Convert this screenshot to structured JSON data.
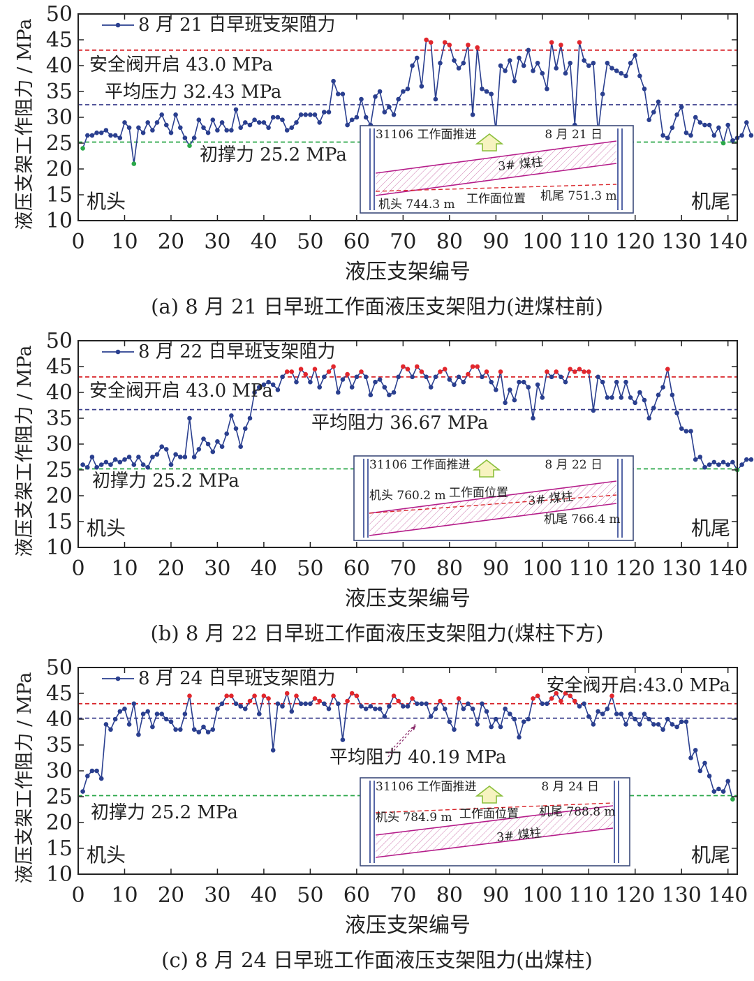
{
  "chart_data": [
    {
      "type": "line",
      "caption": "(a) 8 月 21 日早班工作面液压支架阻力(进煤柱前)",
      "xlabel": "液压支架编号",
      "ylabel": "液压支架工作阻力 / MPa",
      "xlim": [
        0,
        142
      ],
      "ylim": [
        10,
        50
      ],
      "xticks": [
        0,
        10,
        20,
        30,
        40,
        50,
        60,
        70,
        80,
        90,
        100,
        110,
        120,
        130,
        140
      ],
      "yticks": [
        10,
        15,
        20,
        25,
        30,
        35,
        40,
        45,
        50
      ],
      "grid": false,
      "legend_position": "top-left",
      "series": [
        {
          "name": "8 月 21 日早班支架阻力",
          "color": "#2a3f8f",
          "x_start": 1,
          "values": [
            24,
            26.5,
            26.5,
            27,
            27,
            27.5,
            26.5,
            26.5,
            26,
            29,
            28,
            21,
            28,
            27,
            29,
            27.5,
            29,
            30.5,
            28.5,
            27,
            30.5,
            28,
            26,
            24.5,
            26,
            29.5,
            28,
            27,
            29.5,
            27.5,
            29,
            27.5,
            27.5,
            31.5,
            28,
            29,
            28.5,
            29.5,
            29,
            29,
            28,
            30,
            30,
            29.5,
            27.5,
            28,
            29,
            30.5,
            30.5,
            30.5,
            30.5,
            29,
            31,
            31,
            37,
            34.5,
            34.5,
            28.5,
            29.5,
            30,
            33.5,
            30,
            28.5,
            34,
            35,
            31,
            32,
            30.5,
            33.5,
            35,
            35.5,
            40,
            41.5,
            36,
            45,
            44.5,
            33.5,
            40.5,
            44.5,
            44,
            41,
            39.5,
            40.5,
            44,
            30.5,
            43.5,
            35.5,
            35,
            34.5,
            27.5,
            40,
            39,
            41,
            37,
            41.5,
            40,
            43,
            39,
            40.5,
            38.5,
            35.5,
            44.5,
            39.5,
            44,
            38.5,
            40.5,
            28.5,
            44.5,
            41,
            40,
            40.5,
            27,
            34.5,
            40.5,
            39.5,
            39,
            38.5,
            38,
            40.5,
            42,
            38,
            35.5,
            29.5,
            31,
            33,
            26.5,
            26,
            28,
            30.5,
            32,
            27,
            26.5,
            30,
            29,
            28.5,
            28.5,
            26.5,
            28,
            25,
            28.5,
            25.5,
            26,
            26.5,
            29,
            26.5
          ]
        }
      ],
      "reference_lines": [
        {
          "label": "安全阀开启 43.0 MPa",
          "value": 43.0,
          "color": "#d9262c"
        },
        {
          "label": "平均压力 32.43 MPa",
          "value": 32.43,
          "color": "#3b3f8c"
        },
        {
          "label": "初撑力 25.2 MPa",
          "value": 25.2,
          "color": "#2ba84a"
        }
      ],
      "annotations": [
        "机头",
        "机尾"
      ],
      "inset": {
        "push_label": "31106 工作面推进",
        "date": "8 月 21 日",
        "pillar_label": "3# 煤柱",
        "head_label": "机头 744.3 m",
        "face_label": "工作面位置",
        "tail_label": "机尾 751.3 m"
      }
    },
    {
      "type": "line",
      "caption": "(b) 8 月 22 日早班工作面液压支架阻力(煤柱下方)",
      "xlabel": "液压支架编号",
      "ylabel": "液压支架工作阻力 / MPa",
      "xlim": [
        0,
        142
      ],
      "ylim": [
        10,
        50
      ],
      "xticks": [
        0,
        10,
        20,
        30,
        40,
        50,
        60,
        70,
        80,
        90,
        100,
        110,
        120,
        130,
        140
      ],
      "yticks": [
        10,
        15,
        20,
        25,
        30,
        35,
        40,
        45,
        50
      ],
      "grid": false,
      "legend_position": "top-left",
      "series": [
        {
          "name": "8 月 22 日早班支架阻力",
          "color": "#2a3f8f",
          "x_start": 1,
          "values": [
            26,
            25.5,
            27.5,
            25.5,
            26,
            26.5,
            26,
            27,
            26.5,
            27,
            27.5,
            26,
            27.5,
            26,
            25.5,
            27.5,
            28,
            29.5,
            29,
            26,
            28,
            27.5,
            27.5,
            35,
            27.5,
            29,
            31,
            30,
            28.5,
            30.5,
            29.5,
            32,
            35.5,
            33,
            29.5,
            33,
            35,
            40,
            41,
            41.5,
            42,
            41.5,
            40.5,
            43,
            44,
            44,
            42,
            44.5,
            43.5,
            42,
            44.5,
            41,
            43,
            44,
            45,
            40,
            42.5,
            43.5,
            41,
            43,
            44,
            43,
            39.5,
            42,
            42.5,
            41,
            39.5,
            40,
            43,
            45,
            44.5,
            43,
            45,
            44,
            43,
            41,
            43,
            44,
            44.5,
            42.5,
            41.5,
            43,
            42,
            43.5,
            45,
            45,
            43,
            44,
            42,
            40.5,
            44,
            38,
            40.5,
            38.5,
            42,
            42,
            41,
            35,
            41.5,
            39,
            44,
            43,
            44,
            43,
            42,
            44.5,
            44,
            44.5,
            44,
            44,
            36.5,
            43,
            42,
            39,
            39,
            42,
            39,
            42,
            39,
            38,
            40,
            38.5,
            35,
            37,
            39.5,
            41,
            44.5,
            39.5,
            36,
            33,
            32.5,
            32.5,
            27,
            27.5,
            25.5,
            26,
            26.5,
            26,
            26.5,
            26,
            26.5,
            25,
            26,
            27,
            27
          ]
        }
      ],
      "reference_lines": [
        {
          "label": "安全阀开启 43.0 MPa",
          "value": 43.0,
          "color": "#d9262c"
        },
        {
          "label": "平均阻力 36.67 MPa",
          "value": 36.67,
          "color": "#3b3f8c"
        },
        {
          "label": "初撑力 25.2 MPa",
          "value": 25.2,
          "color": "#2ba84a"
        }
      ],
      "annotations": [
        "机头",
        "机尾"
      ],
      "inset": {
        "push_label": "31106 工作面推进",
        "date": "8 月 22 日",
        "pillar_label": "3# 煤柱",
        "head_label": "机头 760.2 m",
        "face_label": "工作面位置",
        "tail_label": "机尾 766.4 m"
      }
    },
    {
      "type": "line",
      "caption": "(c) 8 月 24 日早班工作面液压支架阻力(出煤柱)",
      "xlabel": "液压支架编号",
      "ylabel": "液压支架工作阻力 / MPa",
      "xlim": [
        0,
        142
      ],
      "ylim": [
        10,
        50
      ],
      "xticks": [
        0,
        10,
        20,
        30,
        40,
        50,
        60,
        70,
        80,
        90,
        100,
        110,
        120,
        130,
        140
      ],
      "yticks": [
        10,
        15,
        20,
        25,
        30,
        35,
        40,
        45,
        50
      ],
      "grid": false,
      "legend_position": "top-left",
      "series": [
        {
          "name": "8 月 24 日早班支架阻力",
          "color": "#2a3f8f",
          "x_start": 1,
          "values": [
            26,
            29,
            30,
            30,
            28.5,
            39,
            38,
            40,
            41.5,
            42,
            39,
            43,
            37,
            41,
            41.5,
            38.5,
            41,
            41,
            40,
            39.5,
            38,
            38,
            41,
            44.5,
            38,
            37.5,
            38.5,
            37.5,
            38,
            42,
            43,
            44.5,
            44.5,
            43,
            42.5,
            42,
            43.5,
            44.5,
            41,
            44.5,
            44,
            34,
            43,
            42.5,
            45,
            41.5,
            44.5,
            43,
            43,
            43,
            44,
            43.5,
            43,
            42,
            44.5,
            43,
            36,
            43.5,
            45,
            44.5,
            42.5,
            42,
            42.5,
            42,
            42,
            40.5,
            42.5,
            44.5,
            43.5,
            42.5,
            42.5,
            44,
            43,
            43,
            43,
            40.5,
            42,
            43.5,
            42,
            39.5,
            38,
            44,
            42,
            43,
            42,
            39,
            43,
            41.5,
            38.5,
            40,
            38.5,
            42,
            41,
            40,
            36.5,
            39.5,
            40,
            44,
            44.5,
            43,
            43,
            44,
            45,
            43.5,
            45,
            44.5,
            43.5,
            42.5,
            43,
            40.5,
            39,
            41.5,
            41,
            42,
            44.5,
            41,
            41,
            39,
            41,
            40,
            39,
            41,
            40,
            39,
            39,
            38,
            40,
            39,
            38.5,
            39.5,
            39.5,
            32.5,
            34,
            30,
            31.5,
            29,
            26,
            26.5,
            26,
            28,
            24.5
          ]
        }
      ],
      "reference_lines": [
        {
          "label": "安全阀开启:43.0 MPa",
          "value": 43.0,
          "color": "#d9262c"
        },
        {
          "label": "平均阻力 40.19 MPa",
          "value": 40.19,
          "color": "#3b3f8c"
        },
        {
          "label": "初撑力 25.2 MPa",
          "value": 25.2,
          "color": "#2ba84a"
        }
      ],
      "annotations": [
        "机头",
        "机尾"
      ],
      "inset": {
        "push_label": "31106 工作面推进",
        "date": "8 月 24 日",
        "pillar_label": "3# 煤柱",
        "head_label": "机头 784.9 m",
        "face_label": "工作面位置",
        "tail_label": "机尾 788.8 m"
      }
    }
  ]
}
